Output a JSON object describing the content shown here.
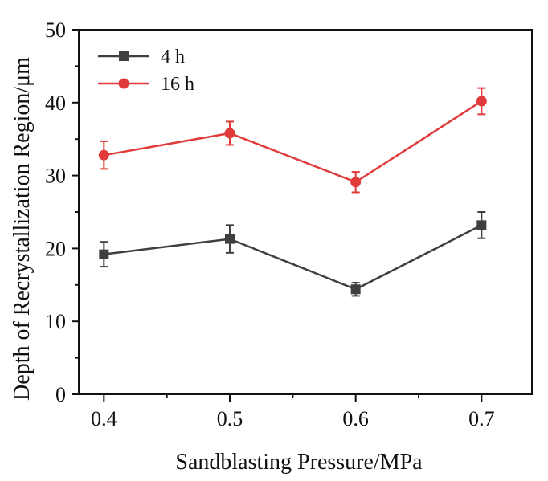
{
  "chart_data": {
    "type": "line",
    "xlabel": "Sandblasting Pressure/MPa",
    "ylabel": "Depth of Recrystallization Region/μm",
    "x": [
      0.4,
      0.5,
      0.6,
      0.7
    ],
    "x_tick_labels": [
      "0.4",
      "0.5",
      "0.6",
      "0.7"
    ],
    "xlim": [
      0.38,
      0.74
    ],
    "ylim": [
      0,
      50
    ],
    "y_ticks": [
      0,
      10,
      20,
      30,
      40,
      50
    ],
    "y_tick_labels": [
      "0",
      "10",
      "20",
      "30",
      "40",
      "50"
    ],
    "grid": false,
    "legend_position": "top-left",
    "series": [
      {
        "name": "4 h",
        "color": "#3f3f3f",
        "marker": "square",
        "values": [
          19.2,
          21.3,
          14.4,
          23.2
        ],
        "errors": [
          1.7,
          1.9,
          0.9,
          1.8
        ]
      },
      {
        "name": "16 h",
        "color": "#e03a3a",
        "marker": "circle",
        "values": [
          32.8,
          35.8,
          29.1,
          40.2
        ],
        "errors": [
          1.9,
          1.6,
          1.4,
          1.8
        ]
      }
    ]
  }
}
